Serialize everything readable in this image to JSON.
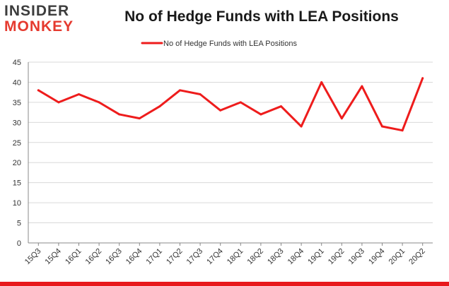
{
  "header": {
    "logo_top": "INSIDER",
    "logo_bottom": "MONKEY",
    "title": "No of Hedge Funds with LEA Positions"
  },
  "colors": {
    "line": "#ee1c1c",
    "logo_accent": "#e53a2f",
    "grid": "#d9d9d9",
    "axis": "#888888",
    "bottom_bar": "#e8191c"
  },
  "chart_data": {
    "type": "line",
    "title": "No of Hedge Funds with LEA Positions",
    "categories": [
      "15Q3",
      "15Q4",
      "16Q1",
      "16Q2",
      "16Q3",
      "16Q4",
      "17Q1",
      "17Q2",
      "17Q3",
      "17Q4",
      "18Q1",
      "18Q2",
      "18Q3",
      "18Q4",
      "19Q1",
      "19Q2",
      "19Q3",
      "19Q4",
      "20Q1",
      "20Q2"
    ],
    "series": [
      {
        "name": "No of Hedge Funds with LEA Positions",
        "values": [
          38,
          35,
          37,
          35,
          32,
          31,
          34,
          38,
          37,
          33,
          35,
          32,
          34,
          29,
          40,
          31,
          39,
          29,
          28,
          41
        ]
      }
    ],
    "xlabel": "",
    "ylabel": "",
    "ylim": [
      0,
      45
    ],
    "yticks": [
      0,
      5,
      10,
      15,
      20,
      25,
      30,
      35,
      40,
      45
    ],
    "grid": "horizontal",
    "legend_position": "top-center"
  }
}
